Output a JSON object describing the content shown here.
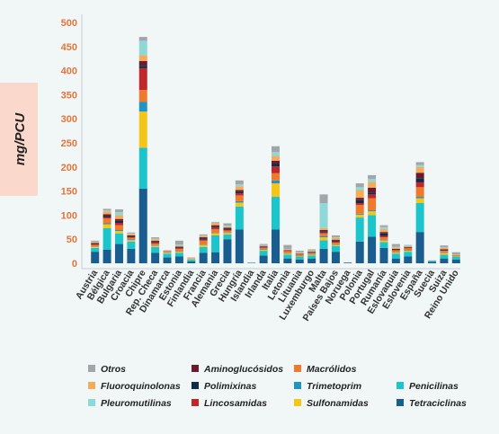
{
  "chart_data": {
    "type": "bar",
    "stacked": true,
    "ylabel": "mg/PCU",
    "xlabel": "",
    "title": "",
    "ylim": [
      0,
      500
    ],
    "yticks": [
      0,
      50,
      100,
      150,
      200,
      250,
      300,
      350,
      400,
      450,
      500
    ],
    "grid": false,
    "legend_position": "bottom",
    "colors": {
      "background": "#f1f6f7",
      "axis": "#c8cfd2",
      "ylabel_box": "#fbd8cc",
      "tick_text": "#e3743a"
    },
    "categories": [
      "Austria",
      "Bélgica",
      "Bulgaria",
      "Croacia",
      "Chipre",
      "Rep. Checa",
      "Dinamarca",
      "Estonia",
      "Finlandia",
      "Francia",
      "Alemania",
      "Grecia",
      "Hungría",
      "Islandia",
      "Irlanda",
      "Italia",
      "Letonia",
      "Lituania",
      "Luxemburgo",
      "Malta",
      "Países Bajos",
      "Noruega",
      "Polonia",
      "Portugal",
      "Rumanía",
      "Eslovaquia",
      "Eslovenia",
      "España",
      "Suecia",
      "Suiza",
      "Reino Unido"
    ],
    "series": [
      {
        "name": "Tetraciclinas",
        "color": "#1a5d8f",
        "values": [
          24,
          28,
          40,
          30,
          155,
          22,
          12,
          14,
          4,
          22,
          23,
          50,
          70,
          0,
          16,
          70,
          10,
          8,
          10,
          30,
          24,
          1,
          45,
          55,
          32,
          10,
          14,
          65,
          3,
          10,
          8
        ]
      },
      {
        "name": "Penicilinas",
        "color": "#1cc5cc",
        "values": [
          8,
          45,
          22,
          15,
          85,
          12,
          8,
          8,
          4,
          12,
          35,
          10,
          48,
          1,
          10,
          68,
          8,
          6,
          6,
          18,
          12,
          0,
          50,
          45,
          12,
          10,
          10,
          60,
          2,
          8,
          6
        ]
      },
      {
        "name": "Sulfonamidas",
        "color": "#f5c518",
        "values": [
          2,
          8,
          5,
          3,
          75,
          2,
          2,
          2,
          1,
          4,
          4,
          3,
          8,
          0,
          2,
          28,
          2,
          1,
          2,
          6,
          2,
          0,
          6,
          8,
          3,
          2,
          2,
          10,
          0,
          3,
          1
        ]
      },
      {
        "name": "Trimetoprim",
        "color": "#1f95c7",
        "values": [
          1,
          2,
          2,
          2,
          20,
          1,
          1,
          1,
          0,
          1,
          1,
          1,
          3,
          0,
          1,
          6,
          1,
          0,
          1,
          2,
          1,
          0,
          2,
          2,
          1,
          1,
          1,
          3,
          0,
          1,
          0
        ]
      },
      {
        "name": "Macrólidos",
        "color": "#ef7a2c",
        "values": [
          3,
          10,
          10,
          3,
          25,
          4,
          1,
          5,
          1,
          8,
          8,
          4,
          12,
          0,
          3,
          15,
          4,
          3,
          2,
          6,
          4,
          0,
          18,
          25,
          6,
          4,
          4,
          20,
          0,
          4,
          2
        ]
      },
      {
        "name": "Lincosamidas",
        "color": "#c0262a",
        "values": [
          2,
          3,
          5,
          2,
          45,
          3,
          1,
          2,
          0,
          2,
          3,
          2,
          4,
          0,
          2,
          14,
          1,
          1,
          1,
          2,
          2,
          0,
          4,
          8,
          3,
          1,
          1,
          10,
          0,
          1,
          0
        ]
      },
      {
        "name": "Polimixinas",
        "color": "#0f2d4a",
        "values": [
          1,
          3,
          4,
          2,
          5,
          2,
          0,
          2,
          0,
          3,
          2,
          2,
          4,
          0,
          1,
          6,
          0,
          1,
          1,
          2,
          2,
          0,
          6,
          4,
          5,
          1,
          1,
          8,
          0,
          1,
          0
        ]
      },
      {
        "name": "Aminoglucósidos",
        "color": "#6b1b2e",
        "values": [
          1,
          3,
          4,
          1,
          10,
          1,
          0,
          1,
          0,
          2,
          3,
          2,
          3,
          0,
          1,
          6,
          1,
          0,
          1,
          3,
          2,
          0,
          5,
          10,
          3,
          1,
          1,
          12,
          0,
          1,
          0
        ]
      },
      {
        "name": "Fluoroquinolonas",
        "color": "#f5ab5a",
        "values": [
          2,
          6,
          8,
          3,
          12,
          3,
          1,
          2,
          1,
          3,
          5,
          2,
          8,
          0,
          1,
          10,
          2,
          2,
          2,
          4,
          4,
          0,
          16,
          12,
          6,
          3,
          2,
          12,
          0,
          3,
          1
        ]
      },
      {
        "name": "Pleuromutilinas",
        "color": "#8fd8d8",
        "values": [
          1,
          2,
          6,
          1,
          30,
          1,
          0,
          2,
          0,
          1,
          1,
          2,
          4,
          0,
          1,
          8,
          1,
          1,
          1,
          52,
          1,
          0,
          6,
          6,
          4,
          1,
          1,
          4,
          0,
          1,
          0
        ]
      },
      {
        "name": "Otros",
        "color": "#a3a6a9",
        "values": [
          2,
          3,
          6,
          2,
          8,
          3,
          1,
          8,
          1,
          2,
          1,
          5,
          8,
          1,
          2,
          12,
          8,
          3,
          2,
          18,
          4,
          1,
          8,
          8,
          4,
          6,
          1,
          6,
          1,
          4,
          5
        ]
      }
    ]
  },
  "legend_layout": [
    [
      "Otros",
      "Aminoglucósidos",
      "Macrólidos"
    ],
    [
      "Fluoroquinolonas",
      "Polimixinas",
      "Trimetoprim",
      "Penicilinas"
    ],
    [
      "Pleuromutilinas",
      "Lincosamidas",
      "Sulfonamidas",
      "Tetraciclinas"
    ]
  ]
}
